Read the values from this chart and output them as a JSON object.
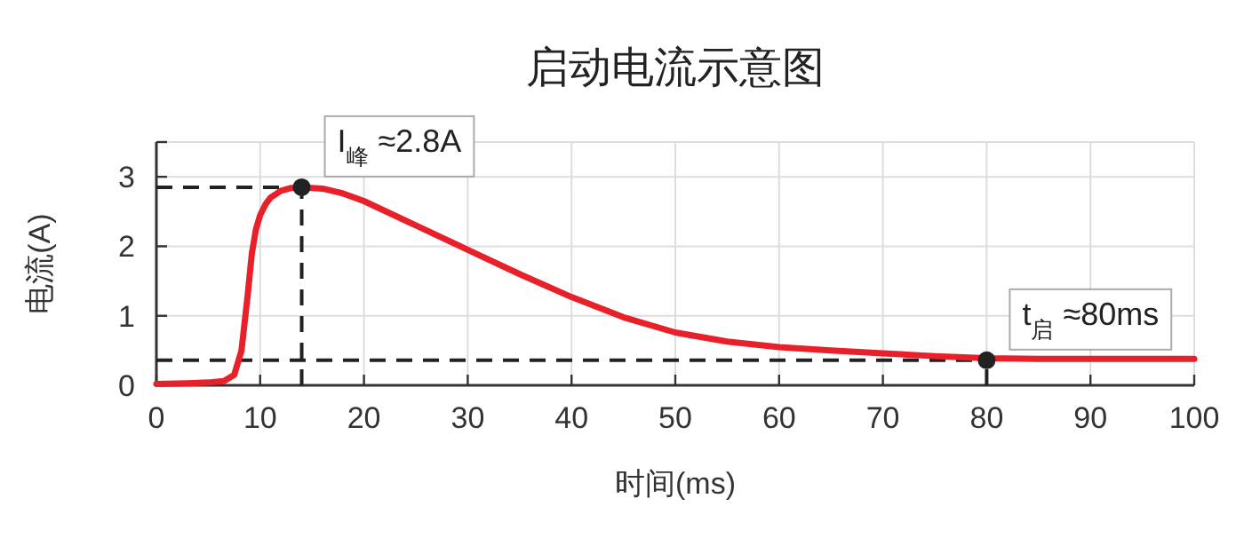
{
  "chart_data": {
    "type": "line",
    "title": "启动电流示意图",
    "xlabel": "时间(ms)",
    "ylabel": "电流(A)",
    "xlim": [
      0,
      100
    ],
    "xticks": [
      0,
      10,
      20,
      30,
      40,
      50,
      60,
      70,
      80,
      90,
      100
    ],
    "ylim": [
      0,
      3.5
    ],
    "yticks": [
      0,
      1,
      2,
      3
    ],
    "grid": true,
    "series": [
      {
        "color": "#e8202a",
        "x": [
          0,
          3,
          5,
          6.5,
          7.5,
          8.2,
          8.8,
          9.2,
          9.6,
          10,
          10.5,
          11,
          12,
          13,
          14,
          16,
          18,
          20,
          25,
          30,
          35,
          40,
          45,
          50,
          55,
          60,
          65,
          70,
          75,
          80,
          85,
          90,
          95,
          100
        ],
        "values": [
          0.02,
          0.03,
          0.04,
          0.06,
          0.15,
          0.5,
          1.3,
          1.9,
          2.25,
          2.45,
          2.6,
          2.7,
          2.8,
          2.84,
          2.85,
          2.83,
          2.76,
          2.65,
          2.3,
          1.95,
          1.6,
          1.27,
          0.98,
          0.76,
          0.63,
          0.55,
          0.5,
          0.46,
          0.42,
          0.39,
          0.38,
          0.38,
          0.38,
          0.38
        ]
      },
      {
        "type": "scatter",
        "color": "#222222",
        "marker": "circle",
        "x": [
          14,
          80
        ],
        "values": [
          2.85,
          0.36
        ]
      }
    ],
    "ref_lines": [
      {
        "axis": "y",
        "value": 2.85,
        "color": "#222222",
        "line_style": "dashed"
      },
      {
        "axis": "x",
        "value": 14,
        "color": "#222222",
        "line_style": "dashed"
      },
      {
        "axis": "y",
        "value": 0.36,
        "color": "#222222",
        "line_style": "dashed"
      },
      {
        "axis": "x",
        "value": 80,
        "color": "#222222",
        "line_style": "dashed"
      }
    ],
    "annotations": [
      {
        "text": "I$_{峰}$ ≈2.8A",
        "x": 14,
        "y": 2.85
      },
      {
        "text": "t$_{启}$ ≈80ms",
        "x": 80,
        "y": 0.36
      }
    ]
  }
}
